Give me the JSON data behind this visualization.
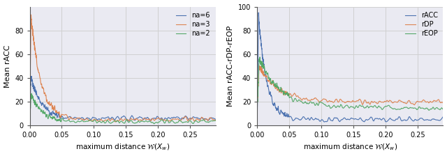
{
  "left_ylabel": "Mean rACC",
  "right_ylabel": "Mean rACC-rDP-rEOP",
  "xlabel_math": "maximum distance $\\mathcal{W}(X_w)$",
  "left_legend": [
    "na=6",
    "na=3",
    "na=2"
  ],
  "right_legend": [
    "rACC",
    "rDP",
    "rEOP"
  ],
  "left_colors": [
    "#4c72b0",
    "#dd8452",
    "#55a868"
  ],
  "right_colors": [
    "#4c72b0",
    "#dd8452",
    "#55a868"
  ],
  "xlim": [
    0.0,
    0.29
  ],
  "left_ylim": [
    0,
    100
  ],
  "right_ylim": [
    0,
    100
  ],
  "left_yticks": [
    0,
    20,
    40,
    60,
    80
  ],
  "right_yticks": [
    0,
    20,
    40,
    60,
    80,
    100
  ],
  "xticks": [
    0.0,
    0.05,
    0.1,
    0.15,
    0.2,
    0.25
  ],
  "grid_color": "#d0d0d0",
  "bg_color": "#eaeaf2"
}
